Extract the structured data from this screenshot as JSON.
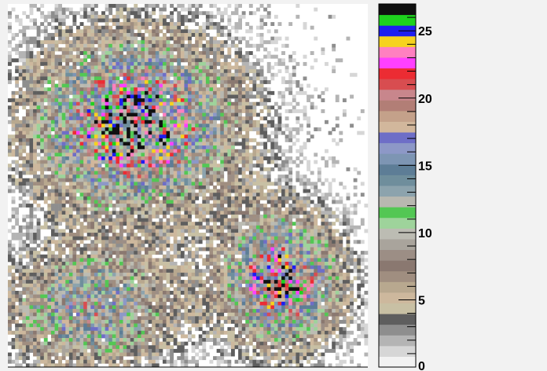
{
  "chart_data": {
    "type": "heatmap",
    "title": "",
    "xlabel": "",
    "ylabel": "",
    "zlim": [
      0,
      27
    ],
    "colorbar": {
      "ticks": [
        0,
        5,
        10,
        15,
        20,
        25
      ],
      "tick_labels": [
        "0",
        "5",
        "10",
        "15",
        "20",
        "25"
      ],
      "palette": [
        "#f2f2f2",
        "#d6d6d6",
        "#b4b4b4",
        "#8e8e8e",
        "#5e5e5e",
        "#c8c0a4",
        "#cdb89d",
        "#b8a88f",
        "#a08e80",
        "#8a7870",
        "#9c8e85",
        "#a9a49c",
        "#bcbcb3",
        "#9ed39b",
        "#53c754",
        "#b8b8b0",
        "#8ca3ad",
        "#6f8e9c",
        "#5d7d96",
        "#7d95b3",
        "#8d98c7",
        "#6e6ec7",
        "#d2b79c",
        "#c4a18a",
        "#b27e76",
        "#c8868c",
        "#d84d50",
        "#ec2c33",
        "#ff40ff",
        "#ff80c0",
        "#f6d21e",
        "#1e1ef0",
        "#1ed21e",
        "#101010"
      ]
    },
    "clusters": [
      {
        "region": "upper-left",
        "center": [
          0.35,
          0.67
        ],
        "spread": [
          0.19,
          0.16
        ],
        "peak": 27
      },
      {
        "region": "lower-left",
        "center": [
          0.23,
          0.16
        ],
        "spread": [
          0.16,
          0.11
        ],
        "peak": 18
      },
      {
        "region": "lower-right",
        "center": [
          0.76,
          0.24
        ],
        "spread": [
          0.11,
          0.12
        ],
        "peak": 26
      }
    ]
  }
}
